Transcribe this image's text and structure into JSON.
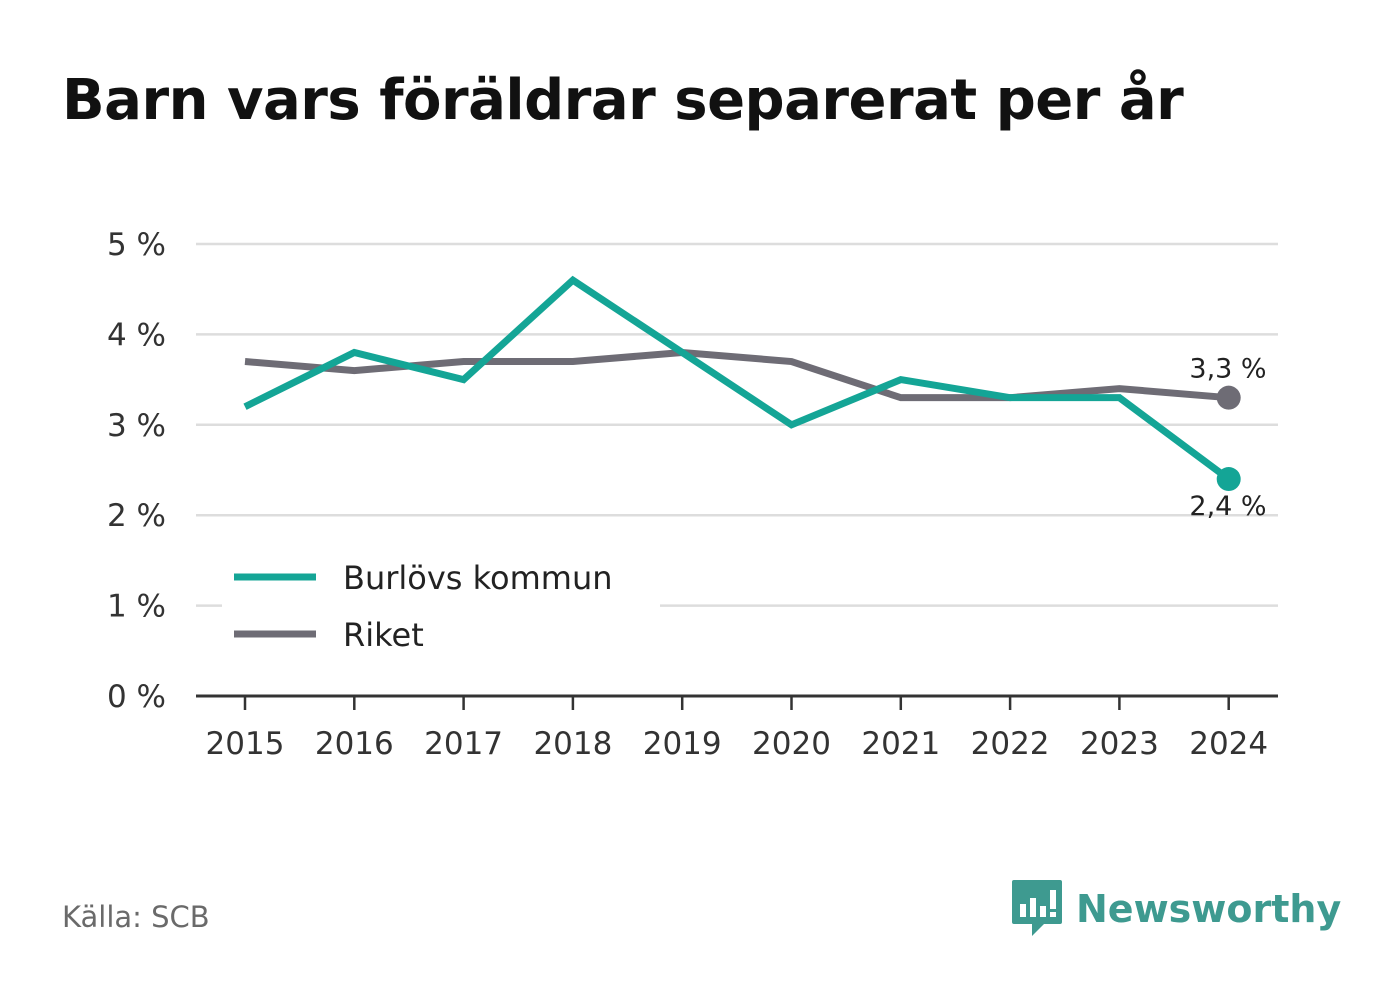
{
  "title": "Barn vars föräldrar separerat per år",
  "source": "Källa: SCB",
  "brand": {
    "name": "Newsworthy",
    "icon": "newsworthy-logo-icon",
    "color": "#3e9a90"
  },
  "colors": {
    "burlov": "#14a596",
    "riket": "#6e6c75",
    "grid": "#dddddd",
    "axis": "#333333"
  },
  "chart_data": {
    "type": "line",
    "title": "Barn vars föräldrar separerat per år",
    "x": [
      "2015",
      "2016",
      "2017",
      "2018",
      "2019",
      "2020",
      "2021",
      "2022",
      "2023",
      "2024"
    ],
    "y_ticks": [
      "0 %",
      "1 %",
      "2 %",
      "3 %",
      "4 %",
      "5 %"
    ],
    "ylim": [
      0,
      5
    ],
    "unit": "%",
    "grid": true,
    "legend_position": "bottom-left",
    "series": [
      {
        "name": "Burlövs kommun",
        "color": "#14a596",
        "values": [
          3.2,
          3.8,
          3.5,
          4.6,
          3.8,
          3.0,
          3.5,
          3.3,
          3.3,
          2.4
        ],
        "end_label": "2,4 %"
      },
      {
        "name": "Riket",
        "color": "#6e6c75",
        "values": [
          3.7,
          3.6,
          3.7,
          3.7,
          3.8,
          3.7,
          3.3,
          3.3,
          3.4,
          3.3
        ],
        "end_label": "3,3 %"
      }
    ]
  }
}
